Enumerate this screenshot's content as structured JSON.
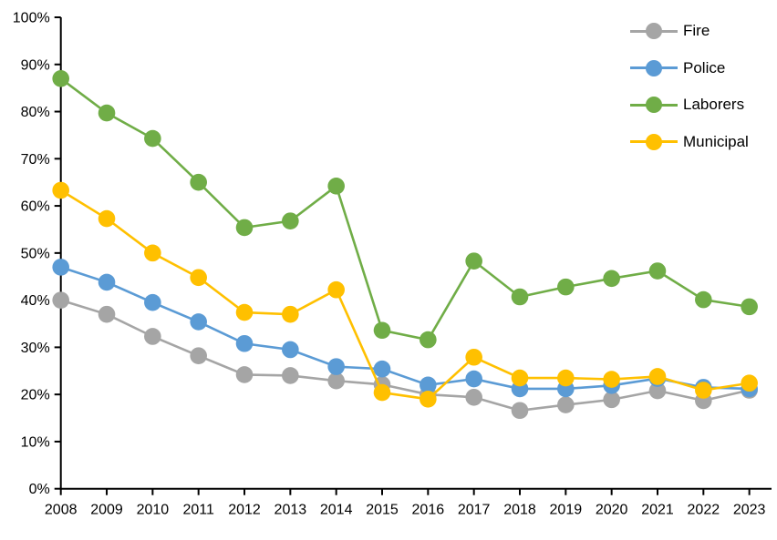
{
  "chart_data": {
    "type": "line",
    "title": "",
    "xlabel": "",
    "ylabel": "",
    "grid": false,
    "legend_position": "top-right",
    "x_categories": [
      "2008",
      "2009",
      "2010",
      "2011",
      "2012",
      "2013",
      "2014",
      "2015",
      "2016",
      "2017",
      "2018",
      "2019",
      "2020",
      "2021",
      "2022",
      "2023"
    ],
    "y_axis": {
      "min": 0,
      "max": 100,
      "step": 10,
      "tick_suffix": "%"
    },
    "series": [
      {
        "name": "Fire",
        "color": "#a5a5a5",
        "values": [
          40.0,
          37.0,
          32.3,
          28.2,
          24.2,
          24.0,
          22.9,
          22.1,
          20.0,
          19.4,
          16.6,
          17.8,
          18.9,
          20.8,
          18.7,
          20.9
        ]
      },
      {
        "name": "Police",
        "color": "#5b9bd5",
        "values": [
          47.0,
          43.8,
          39.5,
          35.4,
          30.8,
          29.5,
          25.9,
          25.4,
          22.0,
          23.3,
          21.2,
          21.2,
          21.9,
          23.4,
          21.5,
          21.2
        ]
      },
      {
        "name": "Laborers",
        "color": "#70ad47",
        "values": [
          87.0,
          79.7,
          74.3,
          65.0,
          55.4,
          56.8,
          64.2,
          33.6,
          31.6,
          48.3,
          40.7,
          42.8,
          44.6,
          46.2,
          40.1,
          38.6
        ]
      },
      {
        "name": "Municipal",
        "color": "#ffc000",
        "values": [
          63.3,
          57.3,
          50.0,
          44.8,
          37.4,
          37.0,
          42.2,
          20.4,
          19.0,
          27.9,
          23.5,
          23.5,
          23.2,
          23.8,
          20.9,
          22.4
        ]
      }
    ]
  }
}
